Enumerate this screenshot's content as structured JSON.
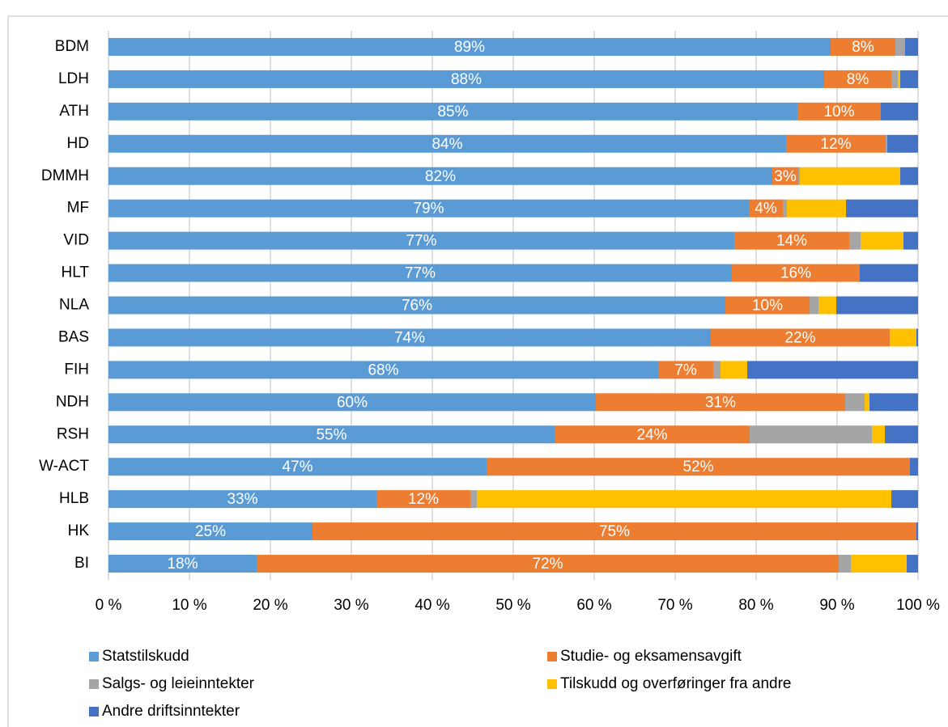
{
  "chart_data": {
    "type": "stacked_bar_horizontal",
    "categories": [
      "BDM",
      "LDH",
      "ATH",
      "HD",
      "DMMH",
      "MF",
      "VID",
      "HLT",
      "NLA",
      "BAS",
      "FIH",
      "NDH",
      "RSH",
      "W-ACT",
      "HLB",
      "HK",
      "BI"
    ],
    "series": [
      {
        "name": "Statstilskudd",
        "color": "#5b9bd5",
        "values": [
          89.2,
          88.4,
          85.1,
          83.7,
          82.0,
          79.1,
          77.3,
          77.0,
          76.2,
          74.4,
          67.9,
          60.2,
          55.1,
          46.7,
          33.1,
          25.2,
          18.3
        ],
        "value_labels": [
          "89%",
          "88%",
          "85%",
          "84%",
          "82%",
          "79%",
          "77%",
          "77%",
          "76%",
          "74%",
          "68%",
          "60%",
          "55%",
          "47%",
          "33%",
          "25%",
          "18%"
        ]
      },
      {
        "name": "Studie- og eksamensavgift",
        "color": "#ed7d31",
        "values": [
          8.0,
          8.3,
          10.3,
          12.3,
          3.2,
          4.2,
          14.2,
          15.8,
          10.4,
          22.1,
          6.8,
          30.8,
          24.1,
          52.3,
          11.6,
          74.6,
          71.9
        ],
        "value_labels": [
          "8%",
          "8%",
          "10%",
          "12%",
          "3%",
          "4%",
          "14%",
          "16%",
          "10%",
          "22%",
          "7%",
          "31%",
          "24%",
          "52%",
          "12%",
          "75%",
          "72%"
        ]
      },
      {
        "name": "Salgs- og leieinntekter",
        "color": "#a5a5a5",
        "values": [
          1.2,
          0.8,
          0,
          0.2,
          0.2,
          0.5,
          1.4,
          0,
          1.1,
          0,
          0.9,
          2.4,
          15.1,
          0,
          0.8,
          0,
          1.5
        ]
      },
      {
        "name": "Tilskudd og overføringer fra andre",
        "color": "#ffc000",
        "values": [
          0,
          0.3,
          0,
          0,
          12.4,
          7.3,
          5.3,
          0,
          2.2,
          3.3,
          3.3,
          0.6,
          1.6,
          0,
          51.2,
          0,
          6.9
        ]
      },
      {
        "name": "Andre driftsinntekter",
        "color": "#4472c4",
        "values": [
          1.6,
          2.2,
          4.6,
          3.8,
          2.2,
          8.9,
          1.8,
          7.2,
          10.1,
          0.2,
          21.1,
          6.0,
          4.1,
          1.0,
          3.3,
          0.2,
          1.4
        ]
      }
    ],
    "xlim": [
      0,
      100
    ],
    "xticks": [
      {
        "value": 0,
        "label": "0 %"
      },
      {
        "value": 10,
        "label": "10 %"
      },
      {
        "value": 20,
        "label": "20 %"
      },
      {
        "value": 30,
        "label": "30 %"
      },
      {
        "value": 40,
        "label": "40 %"
      },
      {
        "value": 50,
        "label": "50 %"
      },
      {
        "value": 60,
        "label": "60 %"
      },
      {
        "value": 70,
        "label": "70 %"
      },
      {
        "value": 80,
        "label": "80 %"
      },
      {
        "value": 90,
        "label": "90 %"
      },
      {
        "value": 100,
        "label": "100 %"
      }
    ],
    "grid": true
  }
}
